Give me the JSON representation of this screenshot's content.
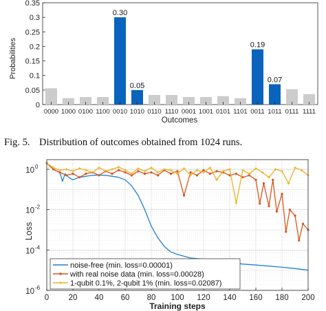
{
  "caption": {
    "label": "Fig. 5.",
    "text": "Distribution of outcomes obtained from 1024 runs."
  },
  "colors": {
    "bar_highlight": "#0a63bd",
    "bar_gray": "#cccccc",
    "noise_free": "#1f7fd6",
    "real_noise": "#d9541a",
    "depolarizing": "#edb020"
  },
  "chart_data": [
    {
      "type": "bar",
      "xlabel": "Outcomes",
      "ylabel": "Probabilities",
      "ylim": [
        0,
        0.35
      ],
      "yticks": [
        0,
        0.05,
        0.1,
        0.15,
        0.2,
        0.25,
        0.3,
        0.35
      ],
      "ytick_labels": [
        "0",
        "0.05",
        "0.1",
        "0.15",
        "0.2",
        "0.25",
        "0.3",
        "0.35"
      ],
      "categories": [
        "0000",
        "1000",
        "0100",
        "1100",
        "0010",
        "1010",
        "0110",
        "1110",
        "0001",
        "1001",
        "0101",
        "1101",
        "0011",
        "1011",
        "0111",
        "1111"
      ],
      "values": [
        0.056,
        0.022,
        0.026,
        0.026,
        0.3,
        0.05,
        0.033,
        0.033,
        0.026,
        0.026,
        0.029,
        0.022,
        0.19,
        0.07,
        0.053,
        0.036
      ],
      "highlighted": [
        false,
        false,
        false,
        false,
        true,
        true,
        false,
        false,
        false,
        false,
        false,
        false,
        true,
        true,
        false,
        false
      ],
      "data_labels": [
        "",
        "",
        "",
        "",
        "0.30",
        "0.05",
        "",
        "",
        "",
        "",
        "",
        "",
        "0.19",
        "0.07",
        "",
        ""
      ],
      "grid": false
    },
    {
      "type": "line",
      "xlabel": "Training steps",
      "ylabel": "Loss",
      "xlim": [
        0,
        200
      ],
      "xticks": [
        0,
        20,
        40,
        60,
        80,
        100,
        120,
        140,
        160,
        180,
        200
      ],
      "xtick_labels": [
        "0",
        "20",
        "40",
        "60",
        "80",
        "100",
        "120",
        "140",
        "160",
        "180",
        "200"
      ],
      "yscale": "log",
      "ylim": [
        1e-06,
        3
      ],
      "yticks": [
        1e-06,
        0.0001,
        0.01,
        1
      ],
      "ytick_labels": [
        {
          "base": "10",
          "exp": "-6"
        },
        {
          "base": "10",
          "exp": "-4"
        },
        {
          "base": "10",
          "exp": "-2"
        },
        {
          "base": "10",
          "exp": "0"
        }
      ],
      "grid": true,
      "legend_position": "bottom-left",
      "series": [
        {
          "name": "noise-free (min. loss=0.00001)",
          "marker": "none",
          "x": [
            0,
            2,
            4,
            6,
            8,
            10,
            12,
            14,
            16,
            18,
            20,
            25,
            30,
            35,
            40,
            45,
            50,
            55,
            60,
            65,
            70,
            75,
            80,
            85,
            90,
            95,
            100,
            110,
            120,
            130,
            140,
            150,
            160,
            170,
            180,
            190,
            200
          ],
          "y": [
            2.0,
            1.5,
            1.2,
            0.9,
            0.8,
            0.7,
            0.25,
            0.6,
            0.45,
            0.35,
            0.3,
            0.4,
            0.45,
            0.5,
            0.52,
            0.5,
            0.45,
            0.4,
            0.3,
            0.15,
            0.05,
            0.01,
            0.0015,
            0.0004,
            0.00015,
            8e-05,
            6e-05,
            4e-05,
            3.5e-05,
            3e-05,
            2.5e-05,
            2e-05,
            1.8e-05,
            1.6e-05,
            1.4e-05,
            1.2e-05,
            1e-05
          ]
        },
        {
          "name": "with real noise data (min. loss=0.00028)",
          "marker": "dot",
          "x": [
            0,
            5,
            10,
            15,
            20,
            25,
            30,
            35,
            40,
            45,
            50,
            55,
            60,
            65,
            70,
            75,
            80,
            85,
            90,
            95,
            100,
            105,
            110,
            115,
            120,
            125,
            130,
            135,
            140,
            145,
            150,
            155,
            160,
            163,
            166,
            170,
            173,
            176,
            180,
            183,
            186,
            190,
            193,
            196,
            200
          ],
          "y": [
            2.0,
            1.0,
            0.7,
            0.5,
            0.6,
            0.4,
            0.6,
            0.7,
            0.5,
            0.8,
            0.6,
            0.9,
            0.7,
            0.5,
            0.8,
            0.6,
            0.7,
            0.5,
            0.9,
            0.6,
            0.8,
            0.05,
            0.7,
            0.5,
            0.9,
            0.6,
            0.8,
            0.7,
            0.5,
            0.6,
            0.4,
            0.5,
            0.3,
            0.02,
            0.2,
            0.015,
            0.3,
            0.008,
            0.06,
            0.0008,
            0.01,
            0.005,
            0.0003,
            0.002,
            0.001
          ]
        },
        {
          "name": "1-qubit 0.1%, 2-qubit 1% (min. loss=0.02087)",
          "marker": "plus",
          "x": [
            0,
            5,
            10,
            15,
            20,
            25,
            30,
            35,
            40,
            45,
            50,
            55,
            60,
            65,
            70,
            75,
            80,
            85,
            90,
            95,
            100,
            105,
            110,
            115,
            120,
            125,
            130,
            135,
            140,
            145,
            150,
            155,
            160,
            165,
            170,
            175,
            180,
            185,
            190,
            195,
            200
          ],
          "y": [
            2.0,
            1.2,
            0.9,
            1.0,
            0.8,
            1.1,
            0.9,
            0.7,
            1.2,
            0.8,
            1.0,
            1.3,
            0.9,
            0.6,
            1.1,
            0.8,
            1.2,
            0.7,
            1.0,
            0.9,
            0.6,
            1.1,
            0.5,
            0.9,
            0.7,
            1.2,
            0.3,
            0.8,
            1.0,
            0.021,
            0.9,
            0.6,
            1.1,
            0.7,
            0.4,
            1.0,
            0.8,
            0.2,
            1.2,
            0.9,
            0.5
          ]
        }
      ]
    }
  ]
}
